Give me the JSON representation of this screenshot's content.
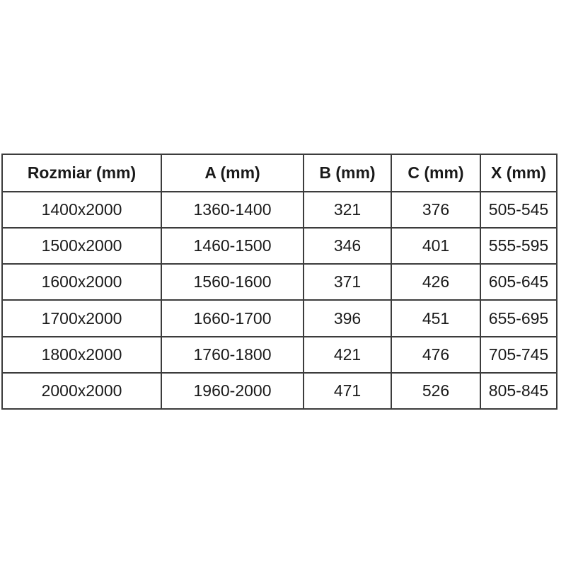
{
  "colors": {
    "background": "#ffffff",
    "border": "#3c3c3c",
    "text": "#1a1a1a"
  },
  "chart_data": {
    "type": "table",
    "title": "",
    "columns": [
      "Rozmiar (mm)",
      "A (mm)",
      "B (mm)",
      "C (mm)",
      "X (mm)"
    ],
    "rows": [
      [
        "1400x2000",
        "1360-1400",
        "321",
        "376",
        "505-545"
      ],
      [
        "1500x2000",
        "1460-1500",
        "346",
        "401",
        "555-595"
      ],
      [
        "1600x2000",
        "1560-1600",
        "371",
        "426",
        "605-645"
      ],
      [
        "1700x2000",
        "1660-1700",
        "396",
        "451",
        "655-695"
      ],
      [
        "1800x2000",
        "1760-1800",
        "421",
        "476",
        "705-745"
      ],
      [
        "2000x2000",
        "1960-2000",
        "471",
        "526",
        "805-845"
      ]
    ]
  }
}
